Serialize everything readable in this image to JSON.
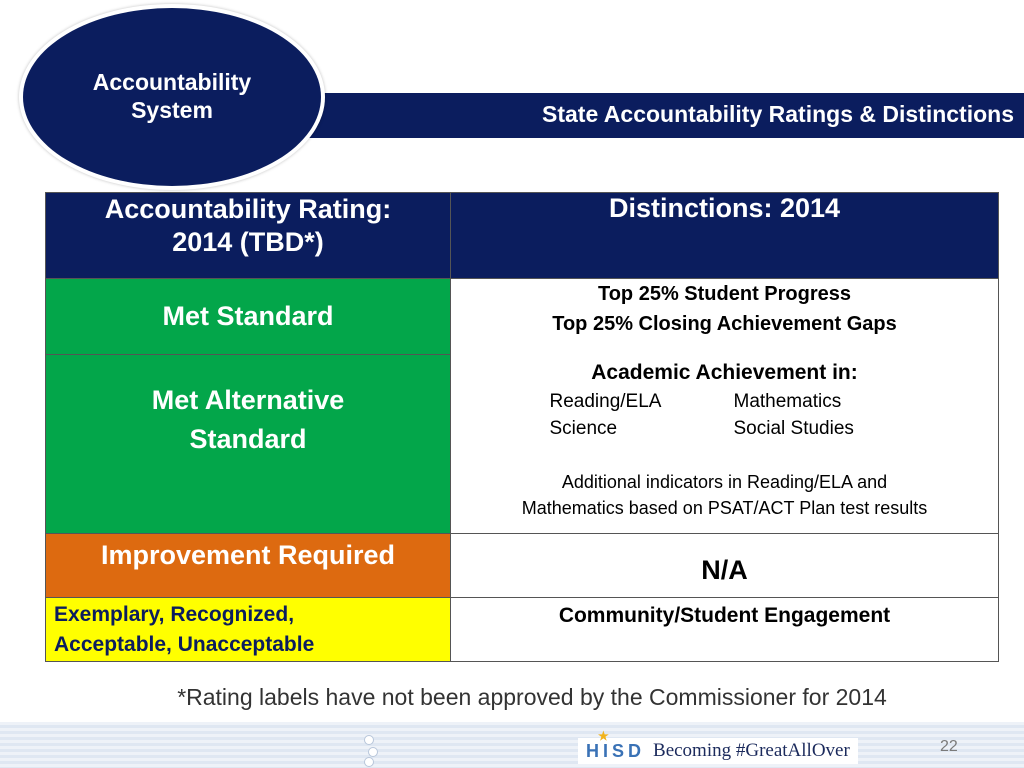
{
  "header": {
    "badge_line1": "Accountability",
    "badge_line2": "System",
    "title": "State Accountability Ratings & Distinctions"
  },
  "table": {
    "header_left_line1": "Accountability Rating:",
    "header_left_line2": "2014 (TBD*)",
    "header_right": "Distinctions: 2014",
    "rows": {
      "met_standard": "Met Standard",
      "met_alternative_line1": "Met Alternative",
      "met_alternative_line2": "Standard",
      "improvement_required": "Improvement Required",
      "legacy_line1": "Exemplary, Recognized,",
      "legacy_line2": "Acceptable, Unacceptable"
    },
    "distinctions": {
      "top_progress": "Top 25% Student Progress",
      "top_gaps": "Top 25% Closing Achievement Gaps",
      "academic_title": "Academic Achievement in:",
      "subjects": [
        "Reading/ELA",
        "Mathematics",
        "Science",
        "Social Studies"
      ],
      "additional_line1": "Additional indicators in Reading/ELA and",
      "additional_line2": "Mathematics based on PSAT/ACT Plan test results",
      "na": "N/A",
      "community": "Community/Student Engagement"
    }
  },
  "footnote": "*Rating labels have not been approved by the Commissioner for 2014",
  "footer": {
    "logo_text": "HISD",
    "tagline": "Becoming #GreatAllOver",
    "slide_number": "22"
  },
  "colors": {
    "navy": "#0b1d5e",
    "green": "#03a64a",
    "orange": "#dd6a10",
    "yellow": "#ffff00",
    "star": "#f1b31c"
  }
}
